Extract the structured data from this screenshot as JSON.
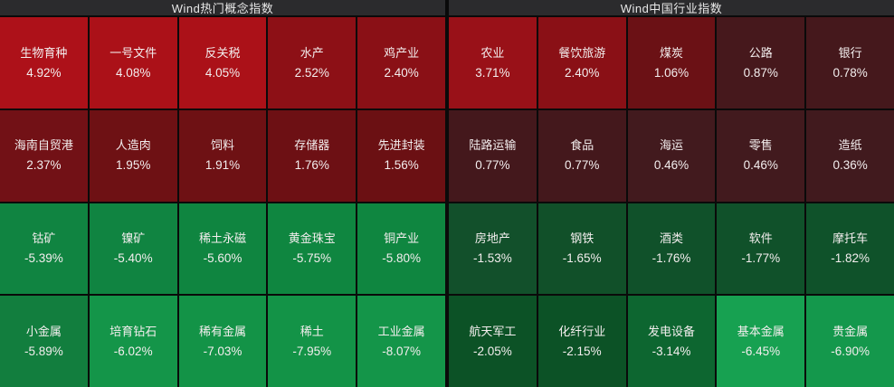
{
  "chart_data": [
    {
      "type": "heatmap",
      "title": "Wind热门概念指数",
      "value_format": "percent_change",
      "grid": {
        "rows": 4,
        "cols": 5
      },
      "cells": [
        {
          "name": "生物育种",
          "change": "4.92%",
          "color": "#ad1119"
        },
        {
          "name": "一号文件",
          "change": "4.08%",
          "color": "#ab1118"
        },
        {
          "name": "反关税",
          "change": "4.05%",
          "color": "#ab1118"
        },
        {
          "name": "水产",
          "change": "2.52%",
          "color": "#8d1016"
        },
        {
          "name": "鸡产业",
          "change": "2.40%",
          "color": "#8a1016"
        },
        {
          "name": "海南自贸港",
          "change": "2.37%",
          "color": "#721116"
        },
        {
          "name": "人造肉",
          "change": "1.95%",
          "color": "#6e1114"
        },
        {
          "name": "饲料",
          "change": "1.91%",
          "color": "#6e1114"
        },
        {
          "name": "存储器",
          "change": "1.76%",
          "color": "#6d1014"
        },
        {
          "name": "先进封装",
          "change": "1.56%",
          "color": "#6b1013"
        },
        {
          "name": "钴矿",
          "change": "-5.39%",
          "color": "#108441"
        },
        {
          "name": "镍矿",
          "change": "-5.40%",
          "color": "#108441"
        },
        {
          "name": "稀土永磁",
          "change": "-5.60%",
          "color": "#0f8540"
        },
        {
          "name": "黄金珠宝",
          "change": "-5.75%",
          "color": "#0f8640"
        },
        {
          "name": "铜产业",
          "change": "-5.80%",
          "color": "#0f8640"
        },
        {
          "name": "小金属",
          "change": "-5.89%",
          "color": "#127e3e"
        },
        {
          "name": "培育钻石",
          "change": "-6.02%",
          "color": "#149549"
        },
        {
          "name": "稀有金属",
          "change": "-7.03%",
          "color": "#139347"
        },
        {
          "name": "稀土",
          "change": "-7.95%",
          "color": "#139347"
        },
        {
          "name": "工业金属",
          "change": "-8.07%",
          "color": "#149549"
        }
      ]
    },
    {
      "type": "heatmap",
      "title": "Wind中国行业指数",
      "value_format": "percent_change",
      "grid": {
        "rows": 4,
        "cols": 5
      },
      "cells": [
        {
          "name": "农业",
          "change": "3.71%",
          "color": "#991118"
        },
        {
          "name": "餐饮旅游",
          "change": "2.40%",
          "color": "#8a1016"
        },
        {
          "name": "煤炭",
          "change": "1.06%",
          "color": "#6b1115"
        },
        {
          "name": "公路",
          "change": "0.87%",
          "color": "#46181c"
        },
        {
          "name": "银行",
          "change": "0.78%",
          "color": "#45181c"
        },
        {
          "name": "陆路运输",
          "change": "0.77%",
          "color": "#44181c"
        },
        {
          "name": "食品",
          "change": "0.77%",
          "color": "#44181c"
        },
        {
          "name": "海运",
          "change": "0.46%",
          "color": "#421a1e"
        },
        {
          "name": "零售",
          "change": "0.46%",
          "color": "#421a1e"
        },
        {
          "name": "造纸",
          "change": "0.36%",
          "color": "#411a1e"
        },
        {
          "name": "房地产",
          "change": "-1.53%",
          "color": "#12502b"
        },
        {
          "name": "钢铁",
          "change": "-1.65%",
          "color": "#115029"
        },
        {
          "name": "酒类",
          "change": "-1.76%",
          "color": "#10512a"
        },
        {
          "name": "软件",
          "change": "-1.77%",
          "color": "#10512a"
        },
        {
          "name": "摩托车",
          "change": "-1.82%",
          "color": "#0f522a"
        },
        {
          "name": "航天军工",
          "change": "-2.05%",
          "color": "#0c5226"
        },
        {
          "name": "化纤行业",
          "change": "-2.15%",
          "color": "#0c5226"
        },
        {
          "name": "发电设备",
          "change": "-3.14%",
          "color": "#0d6630"
        },
        {
          "name": "基本金属",
          "change": "-6.45%",
          "color": "#17a151"
        },
        {
          "name": "贵金属",
          "change": "-6.90%",
          "color": "#14984c"
        }
      ]
    }
  ],
  "colors": {
    "gain_strong": "#ad1119",
    "gain_weak": "#45181c",
    "loss_strong": "#17a151",
    "loss_weak": "#10512a",
    "header_bg": "#2b2b2d",
    "grid_line": "#0a0a0a"
  }
}
